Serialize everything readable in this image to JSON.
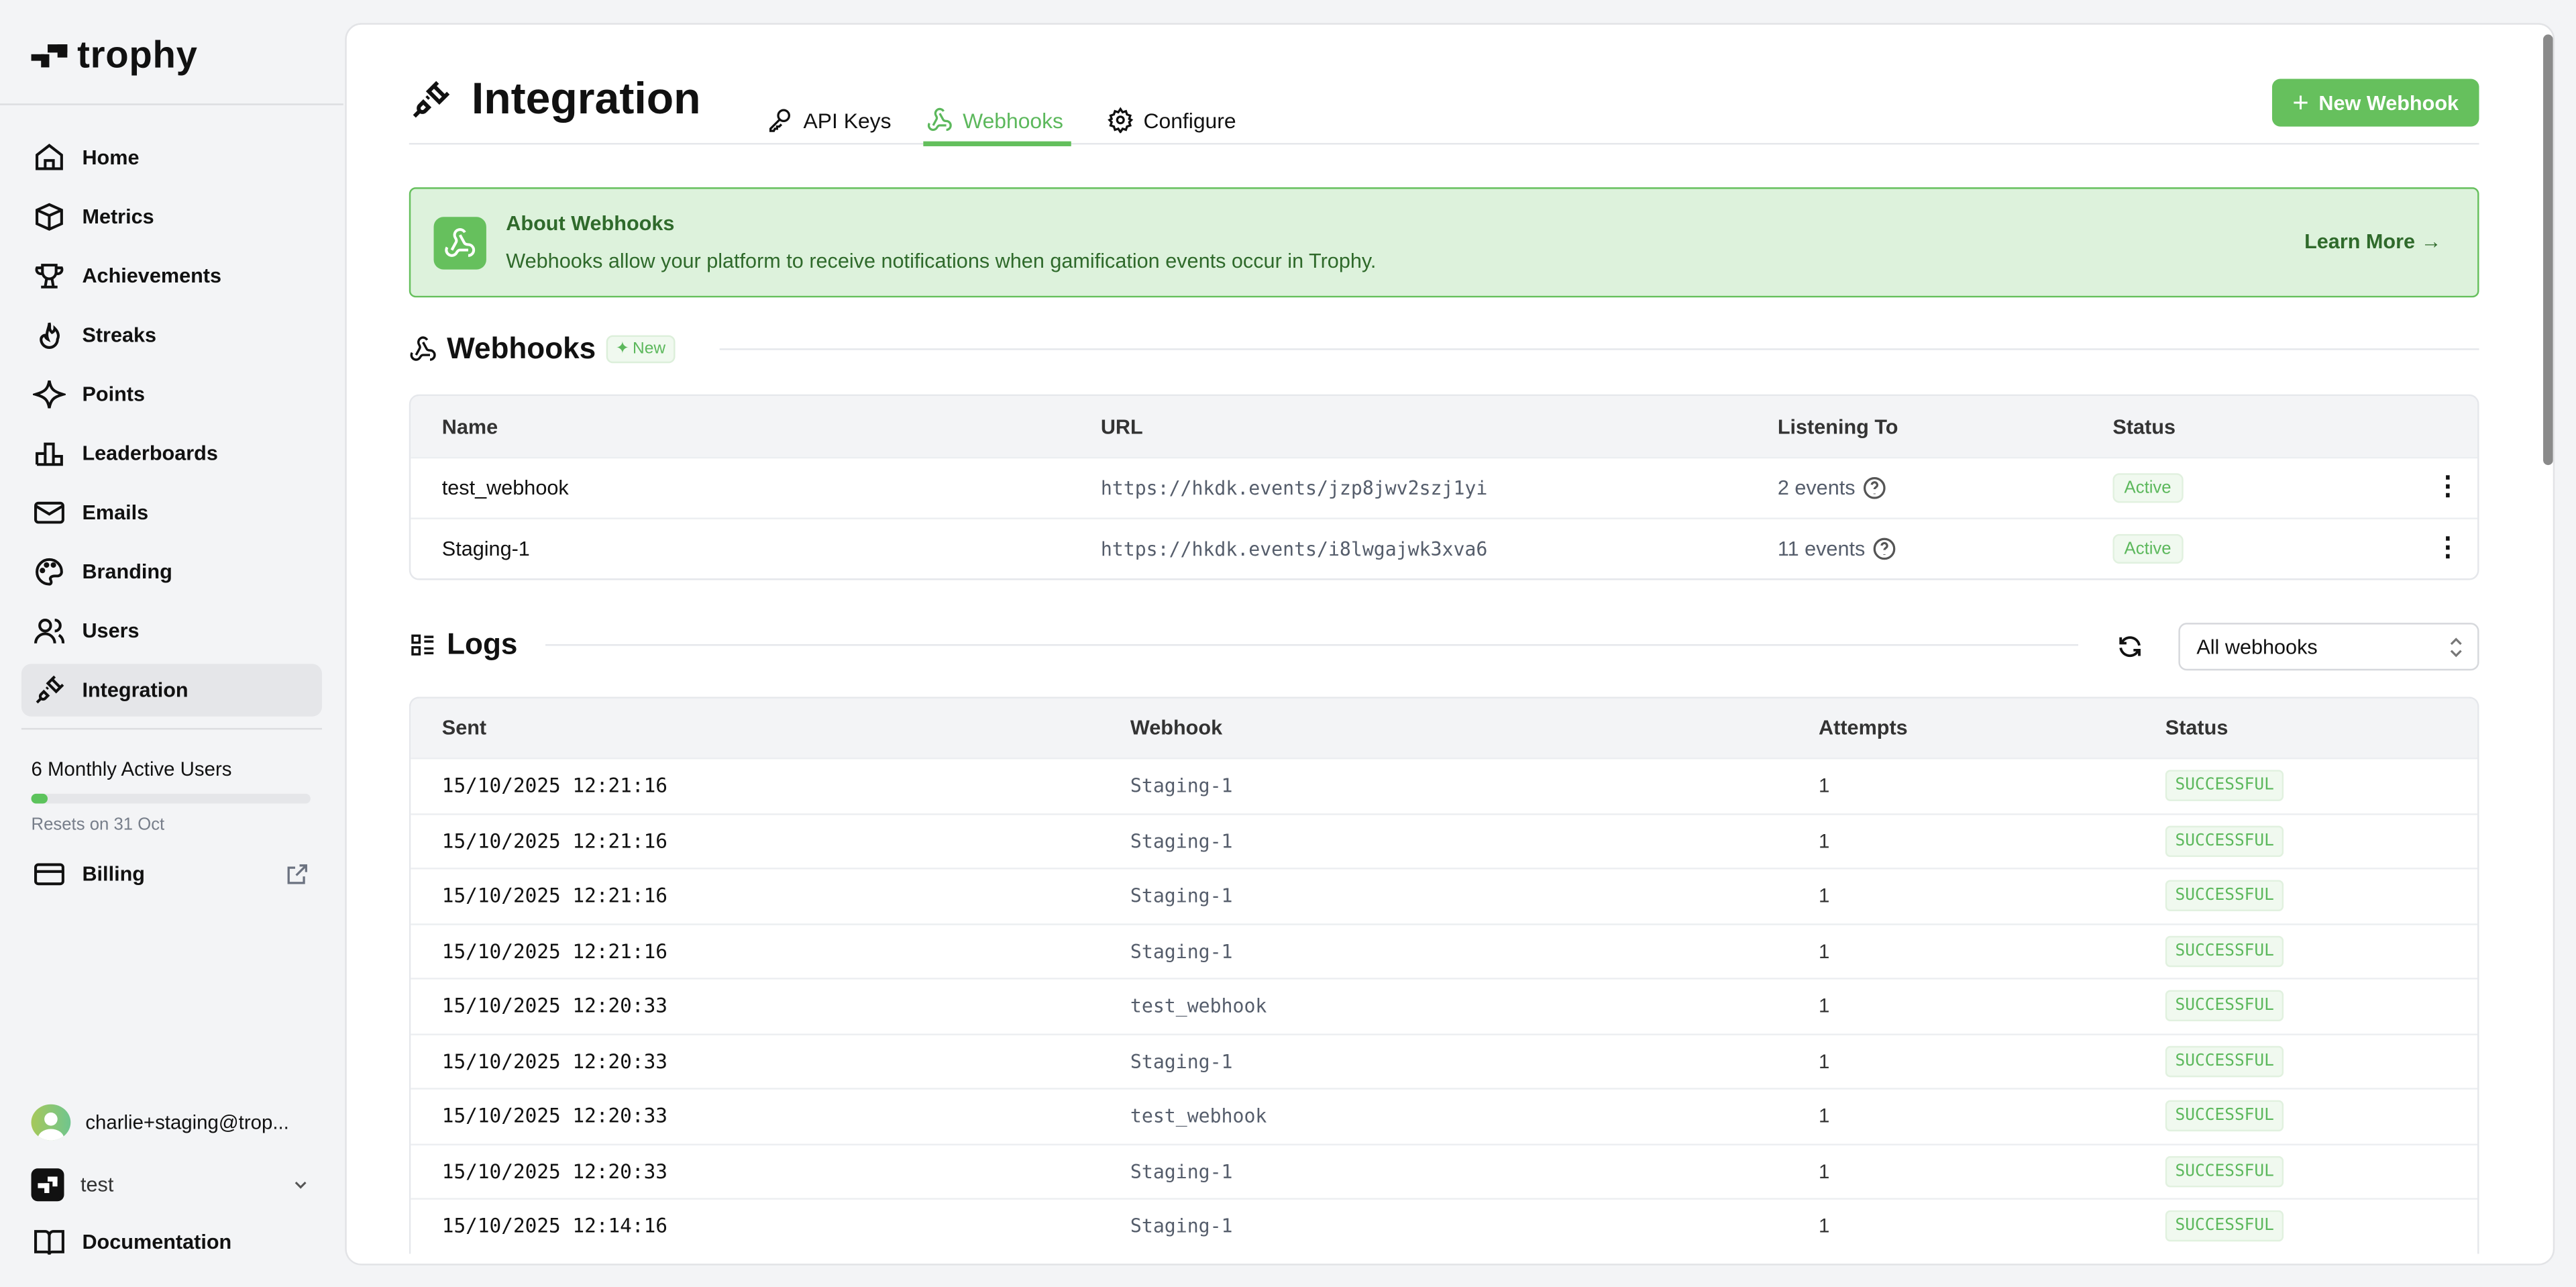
{
  "brand": {
    "name": "trophy",
    "accent": "#66c05d"
  },
  "sidebar": {
    "items": [
      {
        "label": "Home",
        "icon": "home-icon"
      },
      {
        "label": "Metrics",
        "icon": "cube-icon"
      },
      {
        "label": "Achievements",
        "icon": "trophy-icon"
      },
      {
        "label": "Streaks",
        "icon": "flame-icon"
      },
      {
        "label": "Points",
        "icon": "sparkle-icon"
      },
      {
        "label": "Leaderboards",
        "icon": "podium-icon"
      },
      {
        "label": "Emails",
        "icon": "mail-icon"
      },
      {
        "label": "Branding",
        "icon": "palette-icon"
      },
      {
        "label": "Users",
        "icon": "users-icon"
      },
      {
        "label": "Integration",
        "icon": "plug-icon",
        "active": true
      }
    ],
    "mau": {
      "label": "6 Monthly Active Users",
      "reset": "Resets on 31 Oct",
      "progress_percent": 6
    },
    "billing": "Billing",
    "user_email": "charlie+staging@trop...",
    "workspace": "test",
    "documentation": "Documentation"
  },
  "header": {
    "title": "Integration",
    "tabs": [
      {
        "label": "API Keys"
      },
      {
        "label": "Webhooks",
        "active": true
      },
      {
        "label": "Configure"
      }
    ],
    "new_button": "New Webhook"
  },
  "banner": {
    "title": "About Webhooks",
    "description": "Webhooks allow your platform to receive notifications when gamification events occur in Trophy.",
    "link": "Learn More →"
  },
  "webhooks": {
    "title": "Webhooks",
    "badge": "New",
    "columns": [
      "Name",
      "URL",
      "Listening To",
      "Status"
    ],
    "rows": [
      {
        "name": "test_webhook",
        "url": "https://hkdk.events/jzp8jwv2szj1yi",
        "listening": "2 events",
        "status": "Active"
      },
      {
        "name": "Staging-1",
        "url": "https://hkdk.events/i8lwgajwk3xva6",
        "listening": "11 events",
        "status": "Active"
      }
    ]
  },
  "logs": {
    "title": "Logs",
    "filter": "All webhooks",
    "columns": [
      "Sent",
      "Webhook",
      "Attempts",
      "Status"
    ],
    "rows": [
      {
        "sent": "15/10/2025 12:21:16",
        "webhook": "Staging-1",
        "attempts": "1",
        "status": "SUCCESSFUL"
      },
      {
        "sent": "15/10/2025 12:21:16",
        "webhook": "Staging-1",
        "attempts": "1",
        "status": "SUCCESSFUL"
      },
      {
        "sent": "15/10/2025 12:21:16",
        "webhook": "Staging-1",
        "attempts": "1",
        "status": "SUCCESSFUL"
      },
      {
        "sent": "15/10/2025 12:21:16",
        "webhook": "Staging-1",
        "attempts": "1",
        "status": "SUCCESSFUL"
      },
      {
        "sent": "15/10/2025 12:20:33",
        "webhook": "test_webhook",
        "attempts": "1",
        "status": "SUCCESSFUL"
      },
      {
        "sent": "15/10/2025 12:20:33",
        "webhook": "Staging-1",
        "attempts": "1",
        "status": "SUCCESSFUL"
      },
      {
        "sent": "15/10/2025 12:20:33",
        "webhook": "test_webhook",
        "attempts": "1",
        "status": "SUCCESSFUL"
      },
      {
        "sent": "15/10/2025 12:20:33",
        "webhook": "Staging-1",
        "attempts": "1",
        "status": "SUCCESSFUL"
      },
      {
        "sent": "15/10/2025 12:14:16",
        "webhook": "Staging-1",
        "attempts": "1",
        "status": "SUCCESSFUL"
      }
    ]
  }
}
